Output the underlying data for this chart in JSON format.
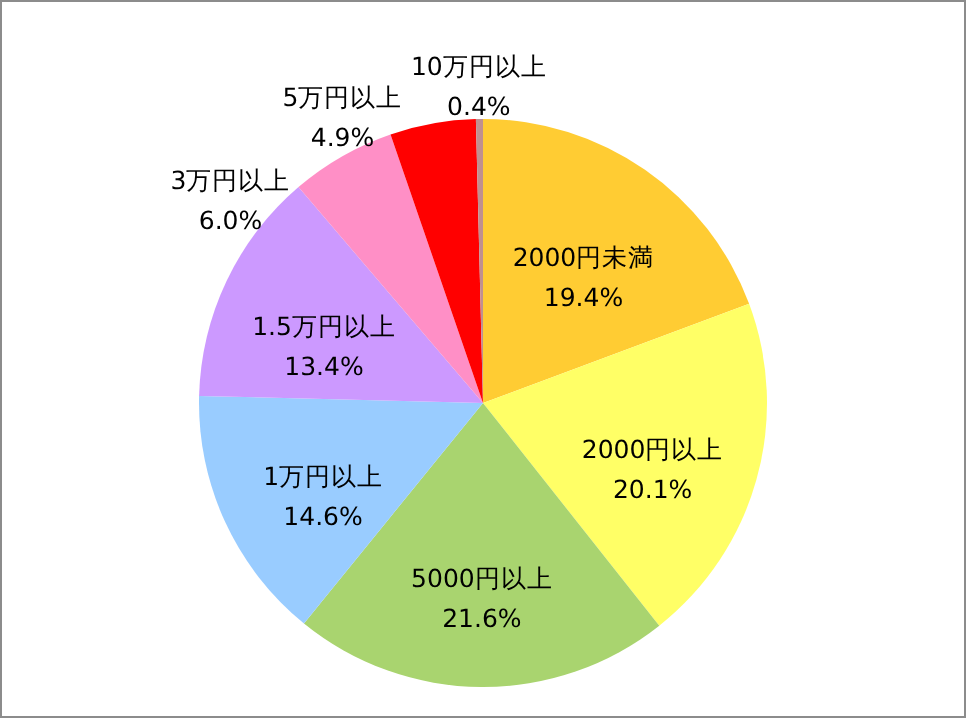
{
  "chart_data": {
    "type": "pie",
    "categories": [
      "2000円未満",
      "2000円以上",
      "5000円以上",
      "1万円以上",
      "1.5万円以上",
      "3万円以上",
      "5万円以上",
      "10万円以上"
    ],
    "values": [
      19.4,
      20.1,
      21.6,
      14.6,
      13.4,
      6.0,
      4.9,
      0.4
    ],
    "value_labels": [
      "19.4%",
      "20.1%",
      "21.6%",
      "14.6%",
      "13.4%",
      "6.0%",
      "4.9%",
      "0.4%"
    ],
    "colors": [
      "#ffcc33",
      "#ffff66",
      "#a9d46f",
      "#99ccff",
      "#cc99ff",
      "#ff8fc6",
      "#ff0000",
      "#c09090"
    ],
    "legend": false
  }
}
